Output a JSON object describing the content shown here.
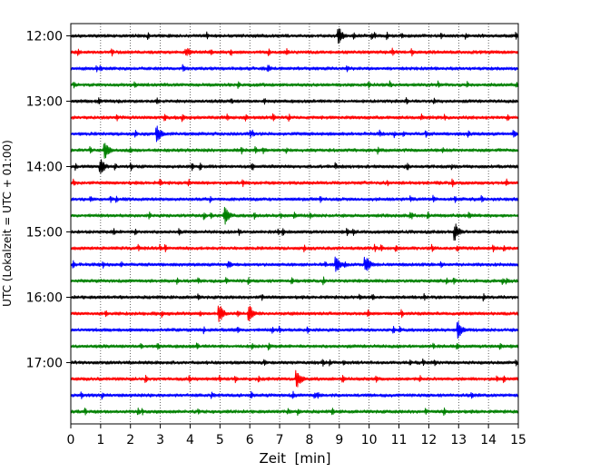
{
  "chart_data": {
    "type": "line",
    "title": "",
    "xlabel": "Zeit  [min]",
    "ylabel": "UTC (Lokalzeit = UTC + 01:00)",
    "xlim": [
      0,
      15
    ],
    "x_ticks": [
      "0",
      "1",
      "2",
      "3",
      "4",
      "5",
      "6",
      "7",
      "8",
      "9",
      "10",
      "11",
      "12",
      "13",
      "14",
      "15"
    ],
    "y_ticks": [
      "12:00",
      "13:00",
      "14:00",
      "15:00",
      "16:00",
      "17:00"
    ],
    "grid": "vertical dotted",
    "trace_colors": [
      "#000000",
      "#ff0000",
      "#0000ff",
      "#008000"
    ],
    "trace_count": 24,
    "trace_interval_min": 15,
    "events": [
      {
        "trace": 0,
        "minute": 9.0
      },
      {
        "trace": 6,
        "minute": 2.9
      },
      {
        "trace": 7,
        "minute": 1.15
      },
      {
        "trace": 8,
        "minute": 1.0
      },
      {
        "trace": 11,
        "minute": 5.2
      },
      {
        "trace": 12,
        "minute": 12.9
      },
      {
        "trace": 14,
        "minute": 8.9
      },
      {
        "trace": 14,
        "minute": 9.9
      },
      {
        "trace": 17,
        "minute": 5.0
      },
      {
        "trace": 17,
        "minute": 6.0
      },
      {
        "trace": 18,
        "minute": 13.0
      },
      {
        "trace": 21,
        "minute": 7.6
      }
    ]
  }
}
